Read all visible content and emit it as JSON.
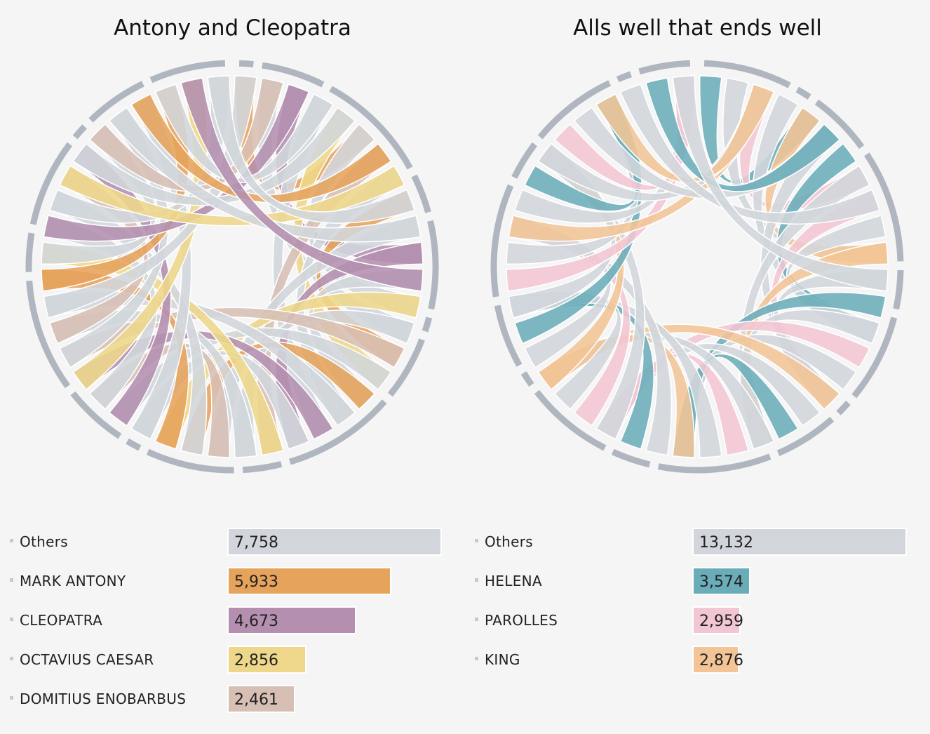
{
  "plays": [
    {
      "title": "Antony and Cleopatra",
      "legend": [
        {
          "name": "Others",
          "value": 7758,
          "label": "7,758",
          "color": "#d2d6dc"
        },
        {
          "name": "MARK ANTONY",
          "value": 5933,
          "label": "5,933",
          "color": "#e6a35c"
        },
        {
          "name": "CLEOPATRA",
          "value": 4673,
          "label": "4,673",
          "color": "#b48faf"
        },
        {
          "name": "OCTAVIUS CAESAR",
          "value": 2856,
          "label": "2,856",
          "color": "#eed78a"
        },
        {
          "name": "DOMITIUS ENOBARBUS",
          "value": 2461,
          "label": "2,461",
          "color": "#d7bfb4"
        }
      ]
    },
    {
      "title": "Alls well that ends well",
      "legend": [
        {
          "name": "Others",
          "value": 13132,
          "label": "13,132",
          "color": "#d2d6dc"
        },
        {
          "name": "HELENA",
          "value": 3574,
          "label": "3,574",
          "color": "#6aadb9"
        },
        {
          "name": "PAROLLES",
          "value": 2959,
          "label": "2,959",
          "color": "#f2c6d3"
        },
        {
          "name": "KING",
          "value": 2876,
          "label": "2,876",
          "color": "#f3c596"
        }
      ]
    }
  ],
  "chart_data": [
    {
      "type": "bar",
      "title": "Antony and Cleopatra",
      "categories": [
        "Others",
        "MARK ANTONY",
        "CLEOPATRA",
        "OCTAVIUS CAESAR",
        "DOMITIUS ENOBARBUS"
      ],
      "values": [
        7758,
        5933,
        4673,
        2856,
        2461
      ]
    },
    {
      "type": "bar",
      "title": "Alls well that ends well",
      "categories": [
        "Others",
        "HELENA",
        "PAROLLES",
        "KING"
      ],
      "values": [
        13132,
        3574,
        2959,
        2876
      ]
    }
  ],
  "chord_ring_color": "#b0b6c0"
}
